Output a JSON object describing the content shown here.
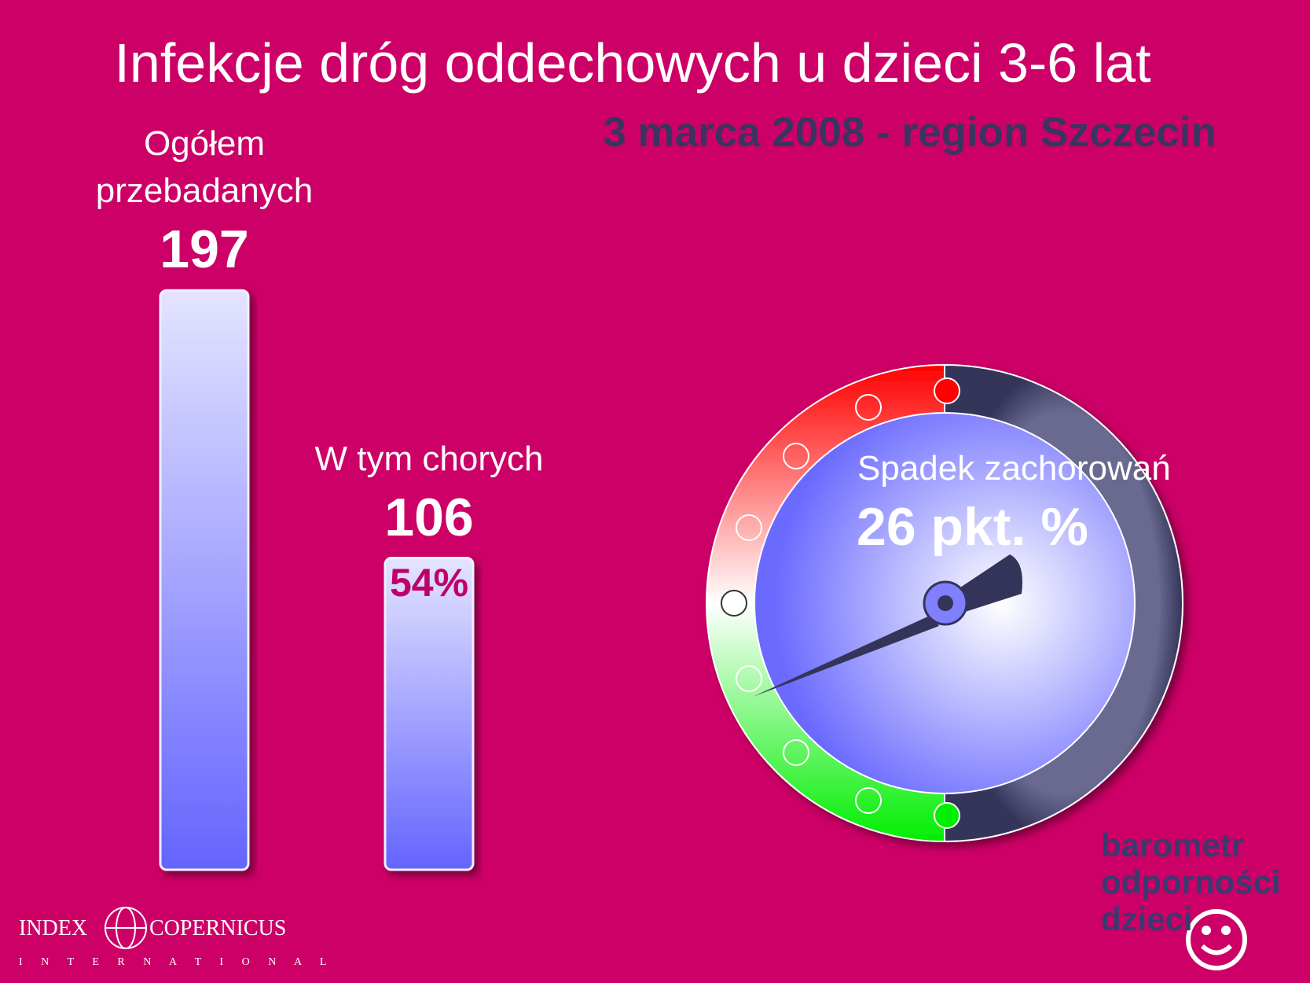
{
  "chart_data": {
    "type": "bar",
    "title": "Infekcje dróg oddechowych u dzieci 3-6 lat",
    "subtitle": "3 marca 2008 - region Szczecin",
    "categories": [
      "Ogółem przebadanych",
      "W tym chorych"
    ],
    "values": [
      197,
      106
    ],
    "shares": [
      null,
      54
    ],
    "share_labels": [
      null,
      "54%"
    ]
  },
  "gauge": {
    "label": "Spadek zachorowań",
    "value_label": "26 pkt. %"
  },
  "logos": {
    "index": "INDEX",
    "copernicus": "COPERNICUS",
    "international": "I N T E R N A T I O N A L",
    "barometr": [
      "barometr",
      "odporności",
      "dzieci"
    ]
  }
}
